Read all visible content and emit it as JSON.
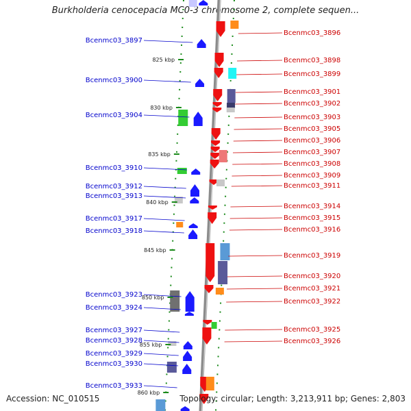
{
  "title": "Burkholderia cenocepacia MC0-3 chromosome 2, complete sequen...",
  "footer": {
    "accession": "Accession: NC_010515",
    "topology": "Topology: circular; Length: 3,213,911 bp; Genes: 2,803"
  },
  "scale_labels": [
    "825 kbp",
    "830 kbp",
    "835 kbp",
    "840 kbp",
    "845 kbp",
    "850 kbp",
    "855 kbp",
    "860 kbp"
  ],
  "genes_reverse": [
    {
      "name": "Bcenmc03_3897"
    },
    {
      "name": "Bcenmc03_3900"
    },
    {
      "name": "Bcenmc03_3904"
    },
    {
      "name": "Bcenmc03_3910"
    },
    {
      "name": "Bcenmc03_3912"
    },
    {
      "name": "Bcenmc03_3913"
    },
    {
      "name": "Bcenmc03_3917"
    },
    {
      "name": "Bcenmc03_3918"
    },
    {
      "name": "Bcenmc03_3923"
    },
    {
      "name": "Bcenmc03_3924"
    },
    {
      "name": "Bcenmc03_3927"
    },
    {
      "name": "Bcenmc03_3928"
    },
    {
      "name": "Bcenmc03_3929"
    },
    {
      "name": "Bcenmc03_3930"
    },
    {
      "name": "Bcenmc03_3933"
    }
  ],
  "genes_forward": [
    {
      "name": "Bcenmc03_3896"
    },
    {
      "name": "Bcenmc03_3898"
    },
    {
      "name": "Bcenmc03_3899"
    },
    {
      "name": "Bcenmc03_3901"
    },
    {
      "name": "Bcenmc03_3902"
    },
    {
      "name": "Bcenmc03_3903"
    },
    {
      "name": "Bcenmc03_3905"
    },
    {
      "name": "Bcenmc03_3906"
    },
    {
      "name": "Bcenmc03_3907"
    },
    {
      "name": "Bcenmc03_3908"
    },
    {
      "name": "Bcenmc03_3909"
    },
    {
      "name": "Bcenmc03_3911"
    },
    {
      "name": "Bcenmc03_3914"
    },
    {
      "name": "Bcenmc03_3915"
    },
    {
      "name": "Bcenmc03_3916"
    },
    {
      "name": "Bcenmc03_3919"
    },
    {
      "name": "Bcenmc03_3920"
    },
    {
      "name": "Bcenmc03_3921"
    },
    {
      "name": "Bcenmc03_3922"
    },
    {
      "name": "Bcenmc03_3925"
    },
    {
      "name": "Bcenmc03_3926"
    }
  ],
  "colors": {
    "reverse_strand": "#1a1aff",
    "forward_strand": "#ee1111",
    "backbone": "#8c8c8c",
    "tick": "#1a8a1a",
    "label_reverse": "#0000cc",
    "label_forward": "#cc0000"
  }
}
